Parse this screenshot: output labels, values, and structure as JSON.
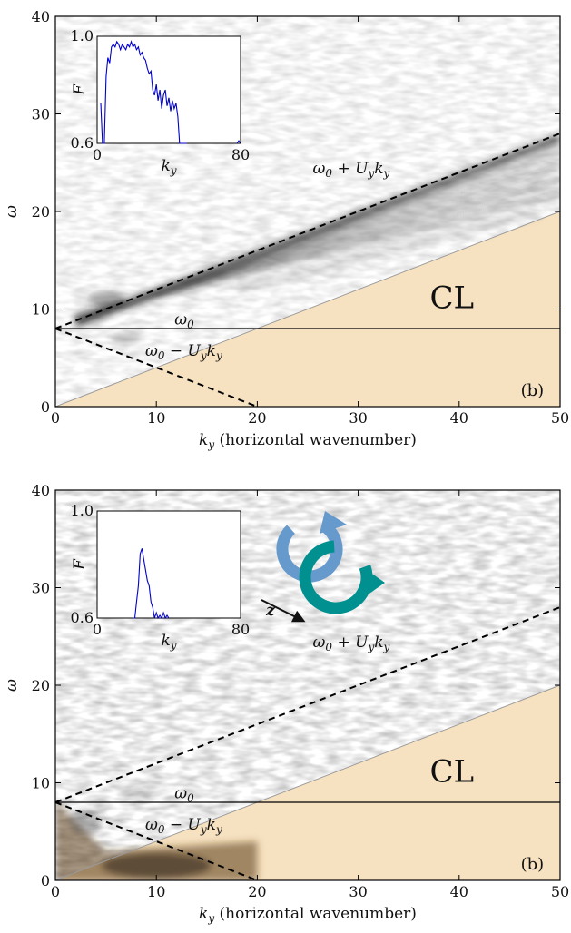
{
  "chart_data": [
    {
      "type": "heatmap",
      "panel": "(b)",
      "xlabel_math": "k",
      "xlabel_sub": "y",
      "xlabel_text": "(horizontal wavenumber)",
      "ylabel": "ω",
      "xlim": [
        0,
        50
      ],
      "ylim": [
        0,
        40
      ],
      "xticks": [
        "0",
        "10",
        "20",
        "30",
        "40",
        "50"
      ],
      "yticks": [
        "0",
        "10",
        "20",
        "30",
        "40"
      ],
      "grid": false,
      "omega0": 8,
      "Uy": 0.4,
      "lines": [
        {
          "name": "ω₀ + U_y k_y",
          "style": "dashed",
          "points": [
            [
              0,
              8
            ],
            [
              50,
              28
            ]
          ]
        },
        {
          "name": "ω₀ − U_y k_y",
          "style": "dashed",
          "points": [
            [
              0,
              8
            ],
            [
              20,
              0
            ]
          ]
        },
        {
          "name": "ω₀",
          "style": "solid",
          "points": [
            [
              0,
              8
            ],
            [
              50,
              8
            ]
          ]
        }
      ],
      "critical_layer": {
        "label": "CL",
        "color": "#f6e1c0",
        "boundary": [
          [
            0,
            0
          ],
          [
            50,
            20
          ]
        ]
      },
      "annotations": {
        "upper": [
          "ω",
          "0",
          " + U",
          "y",
          "k",
          "y"
        ],
        "omega0": [
          "ω",
          "0"
        ],
        "lower": [
          "ω",
          "0",
          " − U",
          "y",
          "k",
          "y"
        ],
        "cl": "CL",
        "panel": "(b)"
      },
      "ridge": {
        "description_free": true,
        "x": [
          0,
          5,
          10,
          15,
          20,
          25,
          30,
          35,
          40,
          45,
          50
        ],
        "y": [
          8,
          10,
          12,
          14,
          16,
          18,
          20,
          22,
          24,
          26,
          28
        ]
      },
      "inset": {
        "type": "line",
        "xlabel_math": "k",
        "xlabel_sub": "y",
        "ylabel": "F",
        "xlim": [
          0,
          80
        ],
        "ylim": [
          0.6,
          1.0
        ],
        "xticks": [
          "0",
          "80"
        ],
        "yticks": [
          "0.6",
          "1.0"
        ],
        "color": "#0000cc",
        "x": [
          2,
          3,
          4,
          5,
          6,
          7,
          8,
          9,
          10,
          11,
          12,
          13,
          14,
          15,
          16,
          17,
          18,
          19,
          20,
          21,
          22,
          23,
          24,
          25,
          26,
          27,
          28,
          29,
          30,
          31,
          32,
          33,
          34,
          35,
          36,
          37,
          38,
          39,
          40,
          41,
          42,
          43,
          44,
          45,
          46,
          47,
          48,
          49,
          50,
          78,
          79,
          80
        ],
        "y": [
          0.75,
          0.6,
          0.6,
          0.85,
          0.92,
          0.9,
          0.96,
          0.97,
          0.96,
          0.98,
          0.97,
          0.95,
          0.97,
          0.96,
          0.95,
          0.97,
          0.96,
          0.98,
          0.96,
          0.97,
          0.95,
          0.96,
          0.93,
          0.94,
          0.92,
          0.91,
          0.88,
          0.86,
          0.87,
          0.8,
          0.78,
          0.82,
          0.76,
          0.8,
          0.73,
          0.78,
          0.8,
          0.74,
          0.77,
          0.72,
          0.76,
          0.73,
          0.75,
          0.7,
          0.6,
          0.6,
          0.6,
          0.6,
          0.6,
          0.6,
          0.61,
          0.6
        ]
      }
    },
    {
      "type": "heatmap",
      "panel": "(b)",
      "xlabel_math": "k",
      "xlabel_sub": "y",
      "xlabel_text": "(horizontal wavenumber)",
      "ylabel": "ω",
      "xlim": [
        0,
        50
      ],
      "ylim": [
        0,
        40
      ],
      "xticks": [
        "0",
        "10",
        "20",
        "30",
        "40",
        "50"
      ],
      "yticks": [
        "0",
        "10",
        "20",
        "30",
        "40"
      ],
      "grid": false,
      "omega0": 8,
      "Uy": 0.4,
      "lines": [
        {
          "name": "ω₀ + U_y k_y",
          "style": "dashed",
          "points": [
            [
              0,
              8
            ],
            [
              50,
              28
            ]
          ]
        },
        {
          "name": "ω₀ − U_y k_y",
          "style": "dashed",
          "points": [
            [
              0,
              8
            ],
            [
              20,
              0
            ]
          ]
        },
        {
          "name": "ω₀",
          "style": "solid",
          "points": [
            [
              0,
              8
            ],
            [
              50,
              8
            ]
          ]
        }
      ],
      "critical_layer": {
        "label": "CL",
        "color": "#f6e1c0",
        "boundary": [
          [
            0,
            0
          ],
          [
            50,
            20
          ]
        ]
      },
      "annotations": {
        "upper": [
          "ω",
          "0",
          " + U",
          "y",
          "k",
          "y"
        ],
        "omega0": [
          "ω",
          "0"
        ],
        "lower": [
          "ω",
          "0",
          " − U",
          "y",
          "k",
          "y"
        ],
        "cl": "CL",
        "panel": "(b)",
        "z_arrow": "z"
      },
      "icon_colors": {
        "light": "#6699cc",
        "dark": "#009090"
      },
      "inset": {
        "type": "line",
        "xlabel_math": "k",
        "xlabel_sub": "y",
        "ylabel": "F",
        "xlim": [
          0,
          80
        ],
        "ylim": [
          0.6,
          1.0
        ],
        "xticks": [
          "0",
          "80"
        ],
        "yticks": [
          "0.6",
          "1.0"
        ],
        "color": "#0000cc",
        "x": [
          20,
          21,
          22,
          23,
          24,
          25,
          26,
          27,
          28,
          29,
          30,
          31,
          32,
          33,
          34,
          35,
          36,
          37,
          38,
          39,
          40
        ],
        "y": [
          0.6,
          0.6,
          0.66,
          0.72,
          0.84,
          0.86,
          0.82,
          0.78,
          0.74,
          0.72,
          0.66,
          0.64,
          0.6,
          0.62,
          0.6,
          0.61,
          0.6,
          0.62,
          0.6,
          0.61,
          0.6
        ]
      }
    }
  ]
}
